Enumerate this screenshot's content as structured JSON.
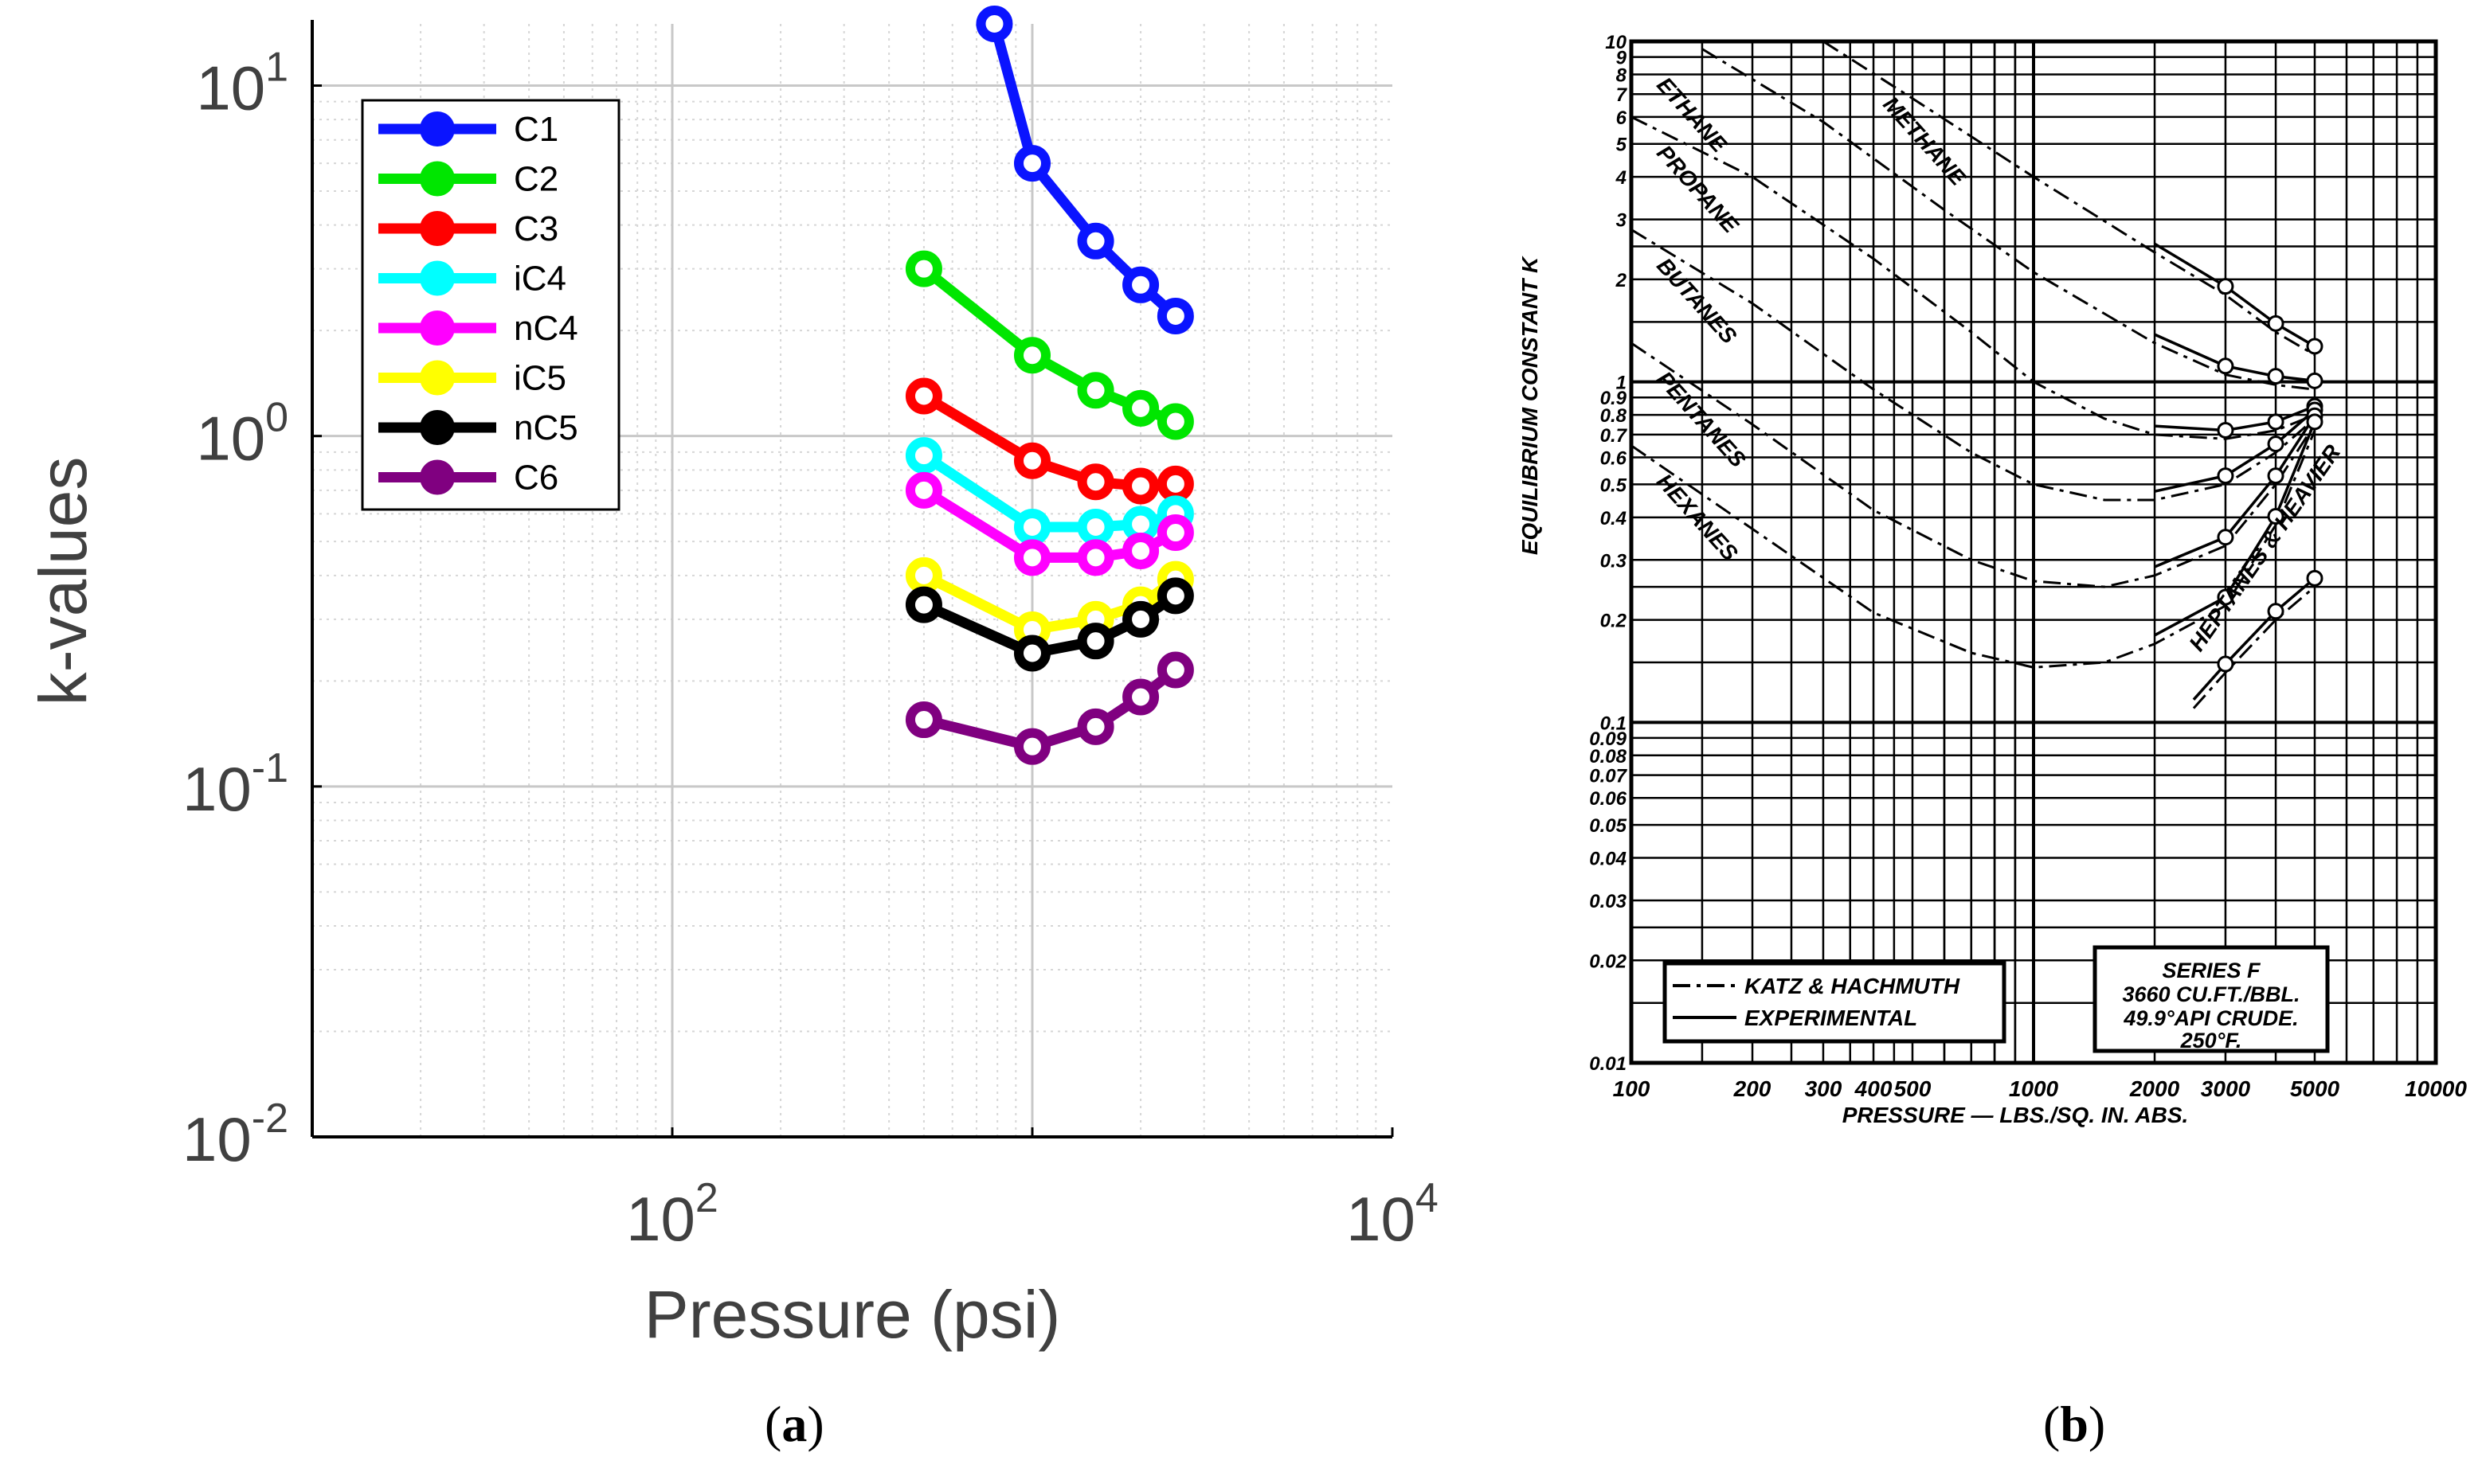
{
  "chart_data": [
    {
      "type": "line",
      "panel_label": "a",
      "title": "",
      "xlabel": "Pressure (psi)",
      "ylabel": "k-values",
      "xscale": "log",
      "yscale": "log",
      "xlim": [
        10,
        10000
      ],
      "ylim": [
        0.01,
        15
      ],
      "x_ticks": [
        {
          "base": "10",
          "exp": "2",
          "value": 100
        },
        {
          "base": "10",
          "exp": "4",
          "value": 10000
        }
      ],
      "y_ticks": [
        {
          "base": "10",
          "exp": "1",
          "value": 10
        },
        {
          "base": "10",
          "exp": "0",
          "value": 1
        },
        {
          "base": "10",
          "exp": "-1",
          "value": 0.1
        },
        {
          "base": "10",
          "exp": "-2",
          "value": 0.01
        }
      ],
      "grid": true,
      "legend_position": "top-left",
      "x": [
        500,
        1000,
        1500,
        2000,
        2500
      ],
      "series": [
        {
          "name": "C1",
          "color": "#0a14ff",
          "x": [
            785,
            1000,
            1500,
            2000,
            2500
          ],
          "values": [
            15.0,
            6.0,
            3.6,
            2.7,
            2.2
          ]
        },
        {
          "name": "C2",
          "color": "#00e600",
          "values": [
            3.0,
            1.7,
            1.35,
            1.2,
            1.1
          ]
        },
        {
          "name": "C3",
          "color": "#ff0000",
          "values": [
            1.3,
            0.85,
            0.74,
            0.72,
            0.73
          ]
        },
        {
          "name": "iC4",
          "color": "#00ffff",
          "values": [
            0.88,
            0.55,
            0.55,
            0.56,
            0.6
          ]
        },
        {
          "name": "nC4",
          "color": "#ff00ff",
          "values": [
            0.7,
            0.45,
            0.45,
            0.47,
            0.53
          ]
        },
        {
          "name": "iC5",
          "color": "#ffff00",
          "values": [
            0.4,
            0.28,
            0.3,
            0.33,
            0.39
          ]
        },
        {
          "name": "nC5",
          "color": "#000000",
          "values": [
            0.33,
            0.24,
            0.26,
            0.3,
            0.35
          ]
        },
        {
          "name": "C6",
          "color": "#800080",
          "values": [
            0.155,
            0.13,
            0.148,
            0.18,
            0.215
          ]
        }
      ]
    },
    {
      "type": "line",
      "panel_label": "b",
      "title": "",
      "xlabel": "PRESSURE — LBS./SQ. IN. ABS.",
      "ylabel": "EQUILIBRIUM CONSTANT K",
      "xscale": "log",
      "yscale": "log",
      "xlim": [
        100,
        10000
      ],
      "ylim": [
        0.01,
        10
      ],
      "x_ticks": [
        "100",
        "200",
        "300",
        "400",
        "500",
        "1000",
        "2000",
        "3000",
        "5000",
        "10000"
      ],
      "x_tick_values": [
        100,
        200,
        300,
        400,
        500,
        1000,
        2000,
        3000,
        5000,
        10000
      ],
      "y_ticks": [
        "10",
        "9",
        "8",
        "7",
        "6",
        "5",
        "4",
        "3",
        "2",
        "1",
        "0.9",
        "0.8",
        "0.7",
        "0.6",
        "0.5",
        "0.4",
        "0.3",
        "0.2",
        "0.1",
        "0.09",
        "0.08",
        "0.07",
        "0.06",
        "0.05",
        "0.04",
        "0.03",
        "0.02",
        "0.01"
      ],
      "y_tick_values": [
        10,
        9,
        8,
        7,
        6,
        5,
        4,
        3,
        2,
        1,
        0.9,
        0.8,
        0.7,
        0.6,
        0.5,
        0.4,
        0.3,
        0.2,
        0.1,
        0.09,
        0.08,
        0.07,
        0.06,
        0.05,
        0.04,
        0.03,
        0.02,
        0.01
      ],
      "grid": true,
      "legend": {
        "dash_dot": "KATZ & HACHMUTH",
        "solid": "EXPERIMENTAL"
      },
      "info_box": [
        "SERIES F",
        "3660 CU.FT./BBL.",
        "49.9°API CRUDE.",
        "250°F."
      ],
      "series": [
        {
          "name": "METHANE",
          "x": [
            300,
            500,
            1000,
            2000,
            3000,
            4000,
            5000
          ],
          "values": [
            10,
            6.8,
            4.0,
            2.4,
            1.8,
            1.4,
            1.2
          ]
        },
        {
          "name": "ETHANE",
          "x": [
            150,
            300,
            600,
            1000,
            2000,
            3000,
            4000,
            5000
          ],
          "values": [
            9.5,
            5.8,
            3.2,
            2.1,
            1.3,
            1.05,
            0.98,
            0.95
          ]
        },
        {
          "name": "PROPANE",
          "x": [
            100,
            200,
            400,
            700,
            1000,
            1500,
            2000,
            3000,
            4000,
            5000
          ],
          "values": [
            6.0,
            4.0,
            2.3,
            1.4,
            1.0,
            0.78,
            0.7,
            0.68,
            0.72,
            0.8
          ]
        },
        {
          "name": "BUTANES",
          "x": [
            100,
            200,
            400,
            700,
            1000,
            1500,
            2000,
            3000,
            4000,
            5000
          ],
          "values": [
            2.8,
            1.7,
            0.95,
            0.62,
            0.5,
            0.45,
            0.45,
            0.5,
            0.62,
            0.78
          ]
        },
        {
          "name": "PENTANES",
          "x": [
            100,
            200,
            400,
            700,
            1000,
            1500,
            2000,
            3000,
            4000,
            5000
          ],
          "values": [
            1.3,
            0.75,
            0.42,
            0.3,
            0.26,
            0.25,
            0.27,
            0.33,
            0.5,
            0.75
          ]
        },
        {
          "name": "HEXANES",
          "x": [
            100,
            200,
            400,
            700,
            1000,
            1500,
            2000,
            3000,
            4000,
            5000
          ],
          "values": [
            0.65,
            0.37,
            0.21,
            0.16,
            0.145,
            0.15,
            0.17,
            0.22,
            0.38,
            0.72
          ]
        },
        {
          "name": "HEPTANES & HEAVIER",
          "x": [
            2500,
            3000,
            4000,
            5000
          ],
          "values": [
            0.11,
            0.14,
            0.2,
            0.25
          ]
        }
      ]
    }
  ],
  "captions": {
    "a": "a",
    "b": "b"
  }
}
